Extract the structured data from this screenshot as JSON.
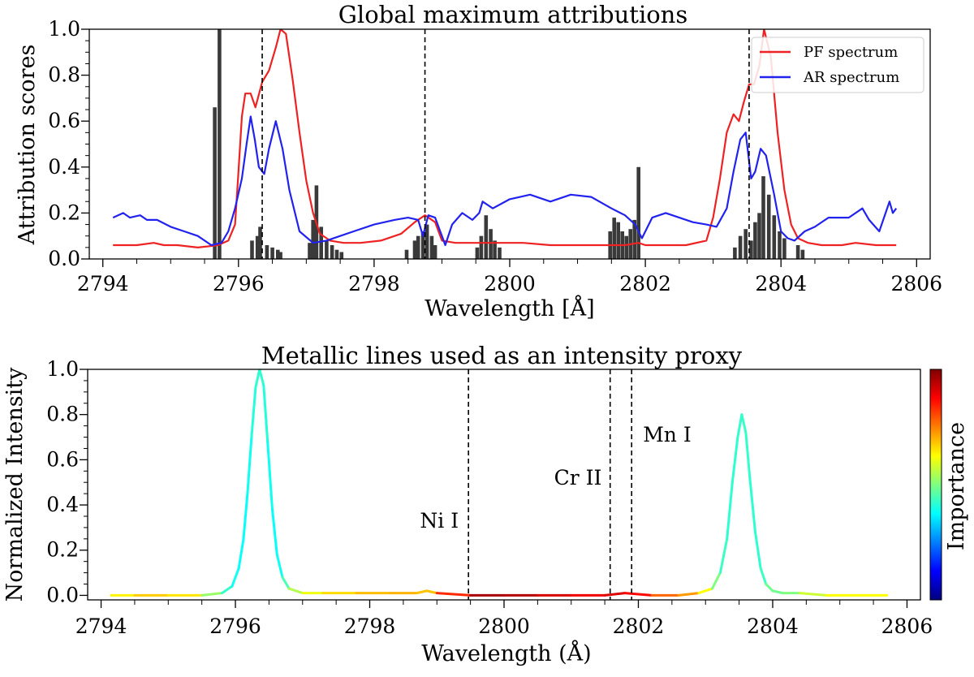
{
  "chart_data": [
    {
      "type": "line",
      "title": "Global maximum attributions",
      "xlabel": "Wavelength [Å]",
      "ylabel": "Attribution scores",
      "xlim": [
        2793.8,
        2806.2
      ],
      "ylim": [
        0.0,
        1.0
      ],
      "xticks": [
        "2794",
        "2796",
        "2798",
        "2800",
        "2802",
        "2804",
        "2806"
      ],
      "yticks": [
        "0.0",
        "0.2",
        "0.4",
        "0.6",
        "0.8",
        "1.0"
      ],
      "legend": {
        "placement": "top-right",
        "entries": [
          "PF spectrum",
          "AR spectrum"
        ]
      },
      "colors": {
        "pf": "#ee2222",
        "ar": "#2222ee",
        "bar": "#3a3a3a"
      },
      "vlines": [
        2796.35,
        2798.75,
        2803.53
      ],
      "series": [
        {
          "name": "PF spectrum",
          "x": [
            2794.15,
            2794.5,
            2794.75,
            2794.9,
            2795.1,
            2795.4,
            2795.7,
            2795.85,
            2795.95,
            2796.0,
            2796.05,
            2796.1,
            2796.18,
            2796.25,
            2796.35,
            2796.45,
            2796.55,
            2796.62,
            2796.7,
            2796.8,
            2796.9,
            2797.0,
            2797.1,
            2797.2,
            2797.35,
            2797.55,
            2797.8,
            2798.1,
            2798.4,
            2798.6,
            2798.75,
            2798.9,
            2799.0,
            2799.2,
            2799.5,
            2799.8,
            2800.2,
            2800.6,
            2801.0,
            2801.4,
            2801.7,
            2801.9,
            2802.0,
            2802.2,
            2802.6,
            2802.9,
            2803.0,
            2803.1,
            2803.2,
            2803.3,
            2803.38,
            2803.45,
            2803.53,
            2803.6,
            2803.68,
            2803.75,
            2803.85,
            2803.95,
            2804.05,
            2804.15,
            2804.25,
            2804.4,
            2804.6,
            2804.9,
            2805.1,
            2805.4,
            2805.55,
            2805.7
          ],
          "values": [
            0.06,
            0.06,
            0.07,
            0.06,
            0.06,
            0.05,
            0.06,
            0.08,
            0.15,
            0.38,
            0.62,
            0.72,
            0.72,
            0.66,
            0.77,
            0.82,
            0.92,
            1.0,
            0.98,
            0.78,
            0.55,
            0.34,
            0.2,
            0.11,
            0.08,
            0.07,
            0.07,
            0.08,
            0.11,
            0.16,
            0.19,
            0.16,
            0.08,
            0.07,
            0.07,
            0.07,
            0.07,
            0.06,
            0.06,
            0.06,
            0.06,
            0.07,
            0.06,
            0.06,
            0.06,
            0.08,
            0.18,
            0.35,
            0.55,
            0.63,
            0.6,
            0.68,
            0.76,
            0.76,
            0.84,
            1.0,
            0.88,
            0.55,
            0.3,
            0.15,
            0.09,
            0.07,
            0.06,
            0.06,
            0.07,
            0.06,
            0.06,
            0.06
          ]
        },
        {
          "name": "AR spectrum",
          "x": [
            2794.15,
            2794.3,
            2794.4,
            2794.55,
            2794.65,
            2794.8,
            2795.0,
            2795.2,
            2795.4,
            2795.6,
            2795.75,
            2795.85,
            2795.95,
            2796.05,
            2796.12,
            2796.18,
            2796.24,
            2796.3,
            2796.38,
            2796.45,
            2796.55,
            2796.65,
            2796.75,
            2796.9,
            2797.1,
            2797.3,
            2797.5,
            2797.7,
            2798.0,
            2798.3,
            2798.5,
            2798.65,
            2798.72,
            2798.8,
            2798.9,
            2799.0,
            2799.05,
            2799.15,
            2799.3,
            2799.45,
            2799.55,
            2799.6,
            2799.75,
            2800.0,
            2800.3,
            2800.6,
            2800.9,
            2801.2,
            2801.5,
            2801.7,
            2801.85,
            2801.95,
            2802.1,
            2802.3,
            2802.5,
            2802.7,
            2802.9,
            2803.05,
            2803.2,
            2803.3,
            2803.4,
            2803.48,
            2803.56,
            2803.62,
            2803.7,
            2803.78,
            2803.9,
            2804.0,
            2804.1,
            2804.2,
            2804.35,
            2804.5,
            2804.7,
            2805.0,
            2805.2,
            2805.3,
            2805.45,
            2805.6,
            2805.65,
            2805.7
          ],
          "values": [
            0.18,
            0.2,
            0.18,
            0.19,
            0.17,
            0.17,
            0.14,
            0.12,
            0.1,
            0.06,
            0.07,
            0.12,
            0.22,
            0.35,
            0.5,
            0.62,
            0.52,
            0.4,
            0.37,
            0.48,
            0.6,
            0.48,
            0.3,
            0.12,
            0.07,
            0.08,
            0.1,
            0.12,
            0.15,
            0.17,
            0.18,
            0.17,
            0.1,
            0.19,
            0.18,
            0.1,
            0.06,
            0.15,
            0.2,
            0.17,
            0.2,
            0.25,
            0.22,
            0.26,
            0.28,
            0.25,
            0.28,
            0.27,
            0.22,
            0.19,
            0.15,
            0.09,
            0.18,
            0.2,
            0.18,
            0.16,
            0.15,
            0.14,
            0.22,
            0.38,
            0.52,
            0.55,
            0.35,
            0.38,
            0.48,
            0.45,
            0.28,
            0.12,
            0.09,
            0.08,
            0.12,
            0.14,
            0.18,
            0.18,
            0.22,
            0.17,
            0.12,
            0.25,
            0.2,
            0.22
          ]
        }
      ],
      "bars": {
        "x": [
          2795.65,
          2795.72,
          2796.2,
          2796.28,
          2796.32,
          2796.42,
          2796.5,
          2796.58,
          2796.62,
          2797.05,
          2797.1,
          2797.15,
          2797.22,
          2797.3,
          2797.38,
          2797.45,
          2797.52,
          2798.48,
          2798.6,
          2798.65,
          2798.72,
          2798.78,
          2798.85,
          2798.9,
          2799.52,
          2799.58,
          2799.65,
          2799.72,
          2799.78,
          2799.85,
          2801.48,
          2801.54,
          2801.6,
          2801.66,
          2801.72,
          2801.78,
          2801.84,
          2801.9,
          2803.32,
          2803.4,
          2803.48,
          2803.56,
          2803.62,
          2803.68,
          2803.74,
          2803.82,
          2803.9,
          2803.98,
          2804.05,
          2804.25,
          2804.32
        ],
        "values": [
          0.66,
          1.0,
          0.08,
          0.1,
          0.14,
          0.06,
          0.05,
          0.04,
          0.03,
          0.07,
          0.17,
          0.32,
          0.14,
          0.08,
          0.06,
          0.04,
          0.03,
          0.04,
          0.08,
          0.1,
          0.12,
          0.15,
          0.1,
          0.06,
          0.05,
          0.1,
          0.19,
          0.13,
          0.08,
          0.05,
          0.12,
          0.18,
          0.16,
          0.12,
          0.1,
          0.13,
          0.17,
          0.4,
          0.05,
          0.1,
          0.13,
          0.08,
          0.16,
          0.2,
          0.36,
          0.28,
          0.19,
          0.12,
          0.09,
          0.06,
          0.04
        ]
      }
    },
    {
      "type": "line",
      "title": "Metallic lines used as an intensity proxy",
      "xlabel": "Wavelength (Å)",
      "ylabel": "Normalized Intensity",
      "xlim": [
        2793.8,
        2806.2
      ],
      "ylim": [
        -0.02,
        1.0
      ],
      "xticks": [
        "2794",
        "2796",
        "2798",
        "2800",
        "2802",
        "2804",
        "2806"
      ],
      "yticks": [
        "0.0",
        "0.2",
        "0.4",
        "0.6",
        "0.8",
        "1.0"
      ],
      "colorbar": {
        "label": "Importance",
        "stops": [
          "#00007f",
          "#0000ff",
          "#007fff",
          "#00ffff",
          "#7fff7f",
          "#ffff00",
          "#ff7f00",
          "#ff0000",
          "#7f0000"
        ]
      },
      "annotations": [
        {
          "text": "Ni I",
          "x": 2799.47,
          "y": 0.3
        },
        {
          "text": "Cr II",
          "x": 2801.6,
          "y": 0.49
        },
        {
          "text": "Mn I",
          "x": 2801.9,
          "y": 0.68
        }
      ],
      "vlines": [
        2799.47,
        2801.58,
        2801.9
      ],
      "series": [
        {
          "name": "Normalized Intensity",
          "x": [
            2794.15,
            2794.5,
            2795.0,
            2795.5,
            2795.8,
            2795.95,
            2796.05,
            2796.12,
            2796.18,
            2796.24,
            2796.3,
            2796.36,
            2796.42,
            2796.48,
            2796.55,
            2796.62,
            2796.7,
            2796.8,
            2797.0,
            2797.3,
            2797.8,
            2798.3,
            2798.7,
            2798.85,
            2799.0,
            2799.5,
            2800.0,
            2800.5,
            2801.0,
            2801.5,
            2801.8,
            2802.2,
            2802.6,
            2802.9,
            2803.1,
            2803.22,
            2803.32,
            2803.4,
            2803.48,
            2803.54,
            2803.6,
            2803.66,
            2803.74,
            2803.82,
            2803.9,
            2804.0,
            2804.15,
            2804.4,
            2804.8,
            2805.2,
            2805.7
          ],
          "values": [
            0.0,
            0.0,
            0.0,
            0.0,
            0.01,
            0.04,
            0.12,
            0.25,
            0.45,
            0.7,
            0.92,
            1.0,
            0.93,
            0.68,
            0.38,
            0.18,
            0.08,
            0.03,
            0.01,
            0.01,
            0.01,
            0.01,
            0.01,
            0.02,
            0.01,
            0.0,
            0.0,
            0.0,
            0.0,
            0.0,
            0.01,
            0.0,
            0.0,
            0.01,
            0.03,
            0.1,
            0.25,
            0.5,
            0.7,
            0.8,
            0.72,
            0.52,
            0.28,
            0.12,
            0.05,
            0.02,
            0.01,
            0.01,
            0.0,
            0.0,
            0.0
          ],
          "importance": [
            0.62,
            0.65,
            0.7,
            0.6,
            0.45,
            0.4,
            0.38,
            0.38,
            0.38,
            0.4,
            0.42,
            0.42,
            0.42,
            0.4,
            0.38,
            0.38,
            0.4,
            0.5,
            0.6,
            0.62,
            0.7,
            0.68,
            0.72,
            0.65,
            0.72,
            0.95,
            0.97,
            0.93,
            0.9,
            0.88,
            0.94,
            0.8,
            0.75,
            0.7,
            0.55,
            0.45,
            0.42,
            0.42,
            0.42,
            0.43,
            0.43,
            0.42,
            0.42,
            0.42,
            0.45,
            0.52,
            0.45,
            0.55,
            0.6,
            0.65,
            0.6
          ]
        }
      ]
    }
  ]
}
